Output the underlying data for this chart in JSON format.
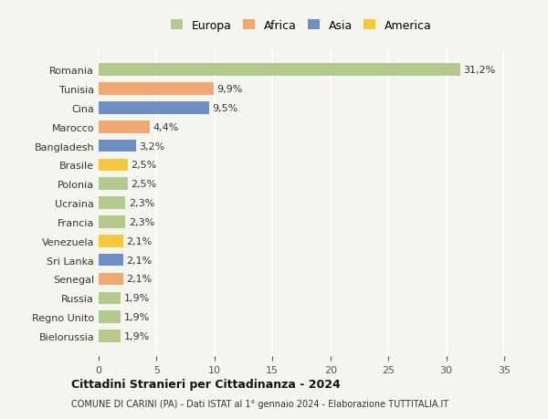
{
  "countries": [
    "Romania",
    "Tunisia",
    "Cina",
    "Marocco",
    "Bangladesh",
    "Brasile",
    "Polonia",
    "Ucraina",
    "Francia",
    "Venezuela",
    "Sri Lanka",
    "Senegal",
    "Russia",
    "Regno Unito",
    "Bielorussia"
  ],
  "values": [
    31.2,
    9.9,
    9.5,
    4.4,
    3.2,
    2.5,
    2.5,
    2.3,
    2.3,
    2.1,
    2.1,
    2.1,
    1.9,
    1.9,
    1.9
  ],
  "labels": [
    "31,2%",
    "9,9%",
    "9,5%",
    "4,4%",
    "3,2%",
    "2,5%",
    "2,5%",
    "2,3%",
    "2,3%",
    "2,1%",
    "2,1%",
    "2,1%",
    "1,9%",
    "1,9%",
    "1,9%"
  ],
  "continents": [
    "Europa",
    "Africa",
    "Asia",
    "Africa",
    "Asia",
    "America",
    "Europa",
    "Europa",
    "Europa",
    "America",
    "Asia",
    "Africa",
    "Europa",
    "Europa",
    "Europa"
  ],
  "colors": {
    "Europa": "#b5c98e",
    "Africa": "#f0a875",
    "Asia": "#6d8fc4",
    "America": "#f5c842"
  },
  "xlim": [
    0,
    35
  ],
  "xticks": [
    0,
    5,
    10,
    15,
    20,
    25,
    30,
    35
  ],
  "title": "Cittadini Stranieri per Cittadinanza - 2024",
  "subtitle": "COMUNE DI CARINI (PA) - Dati ISTAT al 1° gennaio 2024 - Elaborazione TUTTITALIA.IT",
  "background_color": "#f5f5f0",
  "grid_color": "#ffffff",
  "bar_height": 0.65,
  "legend_order": [
    "Europa",
    "Africa",
    "Asia",
    "America"
  ]
}
